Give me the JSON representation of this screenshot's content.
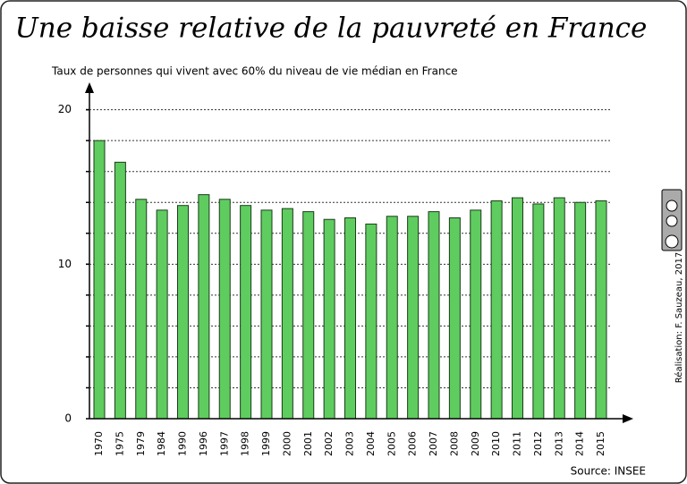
{
  "chart_data": {
    "type": "bar",
    "title": "Une baisse relative de la pauvreté en France",
    "y_label": "Taux de personnes qui vivent avec 60% du niveau de vie médian en France",
    "source": "Source: INSEE",
    "credit": "Réalisation: F. Sauzeau, 2017",
    "categories": [
      "1970",
      "1975",
      "1979",
      "1984",
      "1990",
      "1996",
      "1997",
      "1998",
      "1999",
      "2000",
      "2001",
      "2002",
      "2003",
      "2004",
      "2005",
      "2006",
      "2007",
      "2008",
      "2009",
      "2010",
      "2011",
      "2012",
      "2013",
      "2014",
      "2015"
    ],
    "values": [
      18.0,
      16.6,
      14.2,
      13.5,
      13.8,
      14.5,
      14.2,
      13.8,
      13.5,
      13.6,
      13.4,
      12.9,
      13.0,
      12.6,
      13.1,
      13.1,
      13.4,
      13.0,
      13.5,
      14.1,
      14.3,
      13.9,
      14.3,
      14.0,
      14.1
    ],
    "color": "#5fcc5f",
    "ylim": [
      0,
      21.6
    ],
    "yticks": [
      0,
      10,
      20
    ],
    "grid_ticks": [
      2,
      4,
      6,
      8,
      10,
      12,
      14,
      16,
      18,
      20
    ],
    "grid": true
  }
}
